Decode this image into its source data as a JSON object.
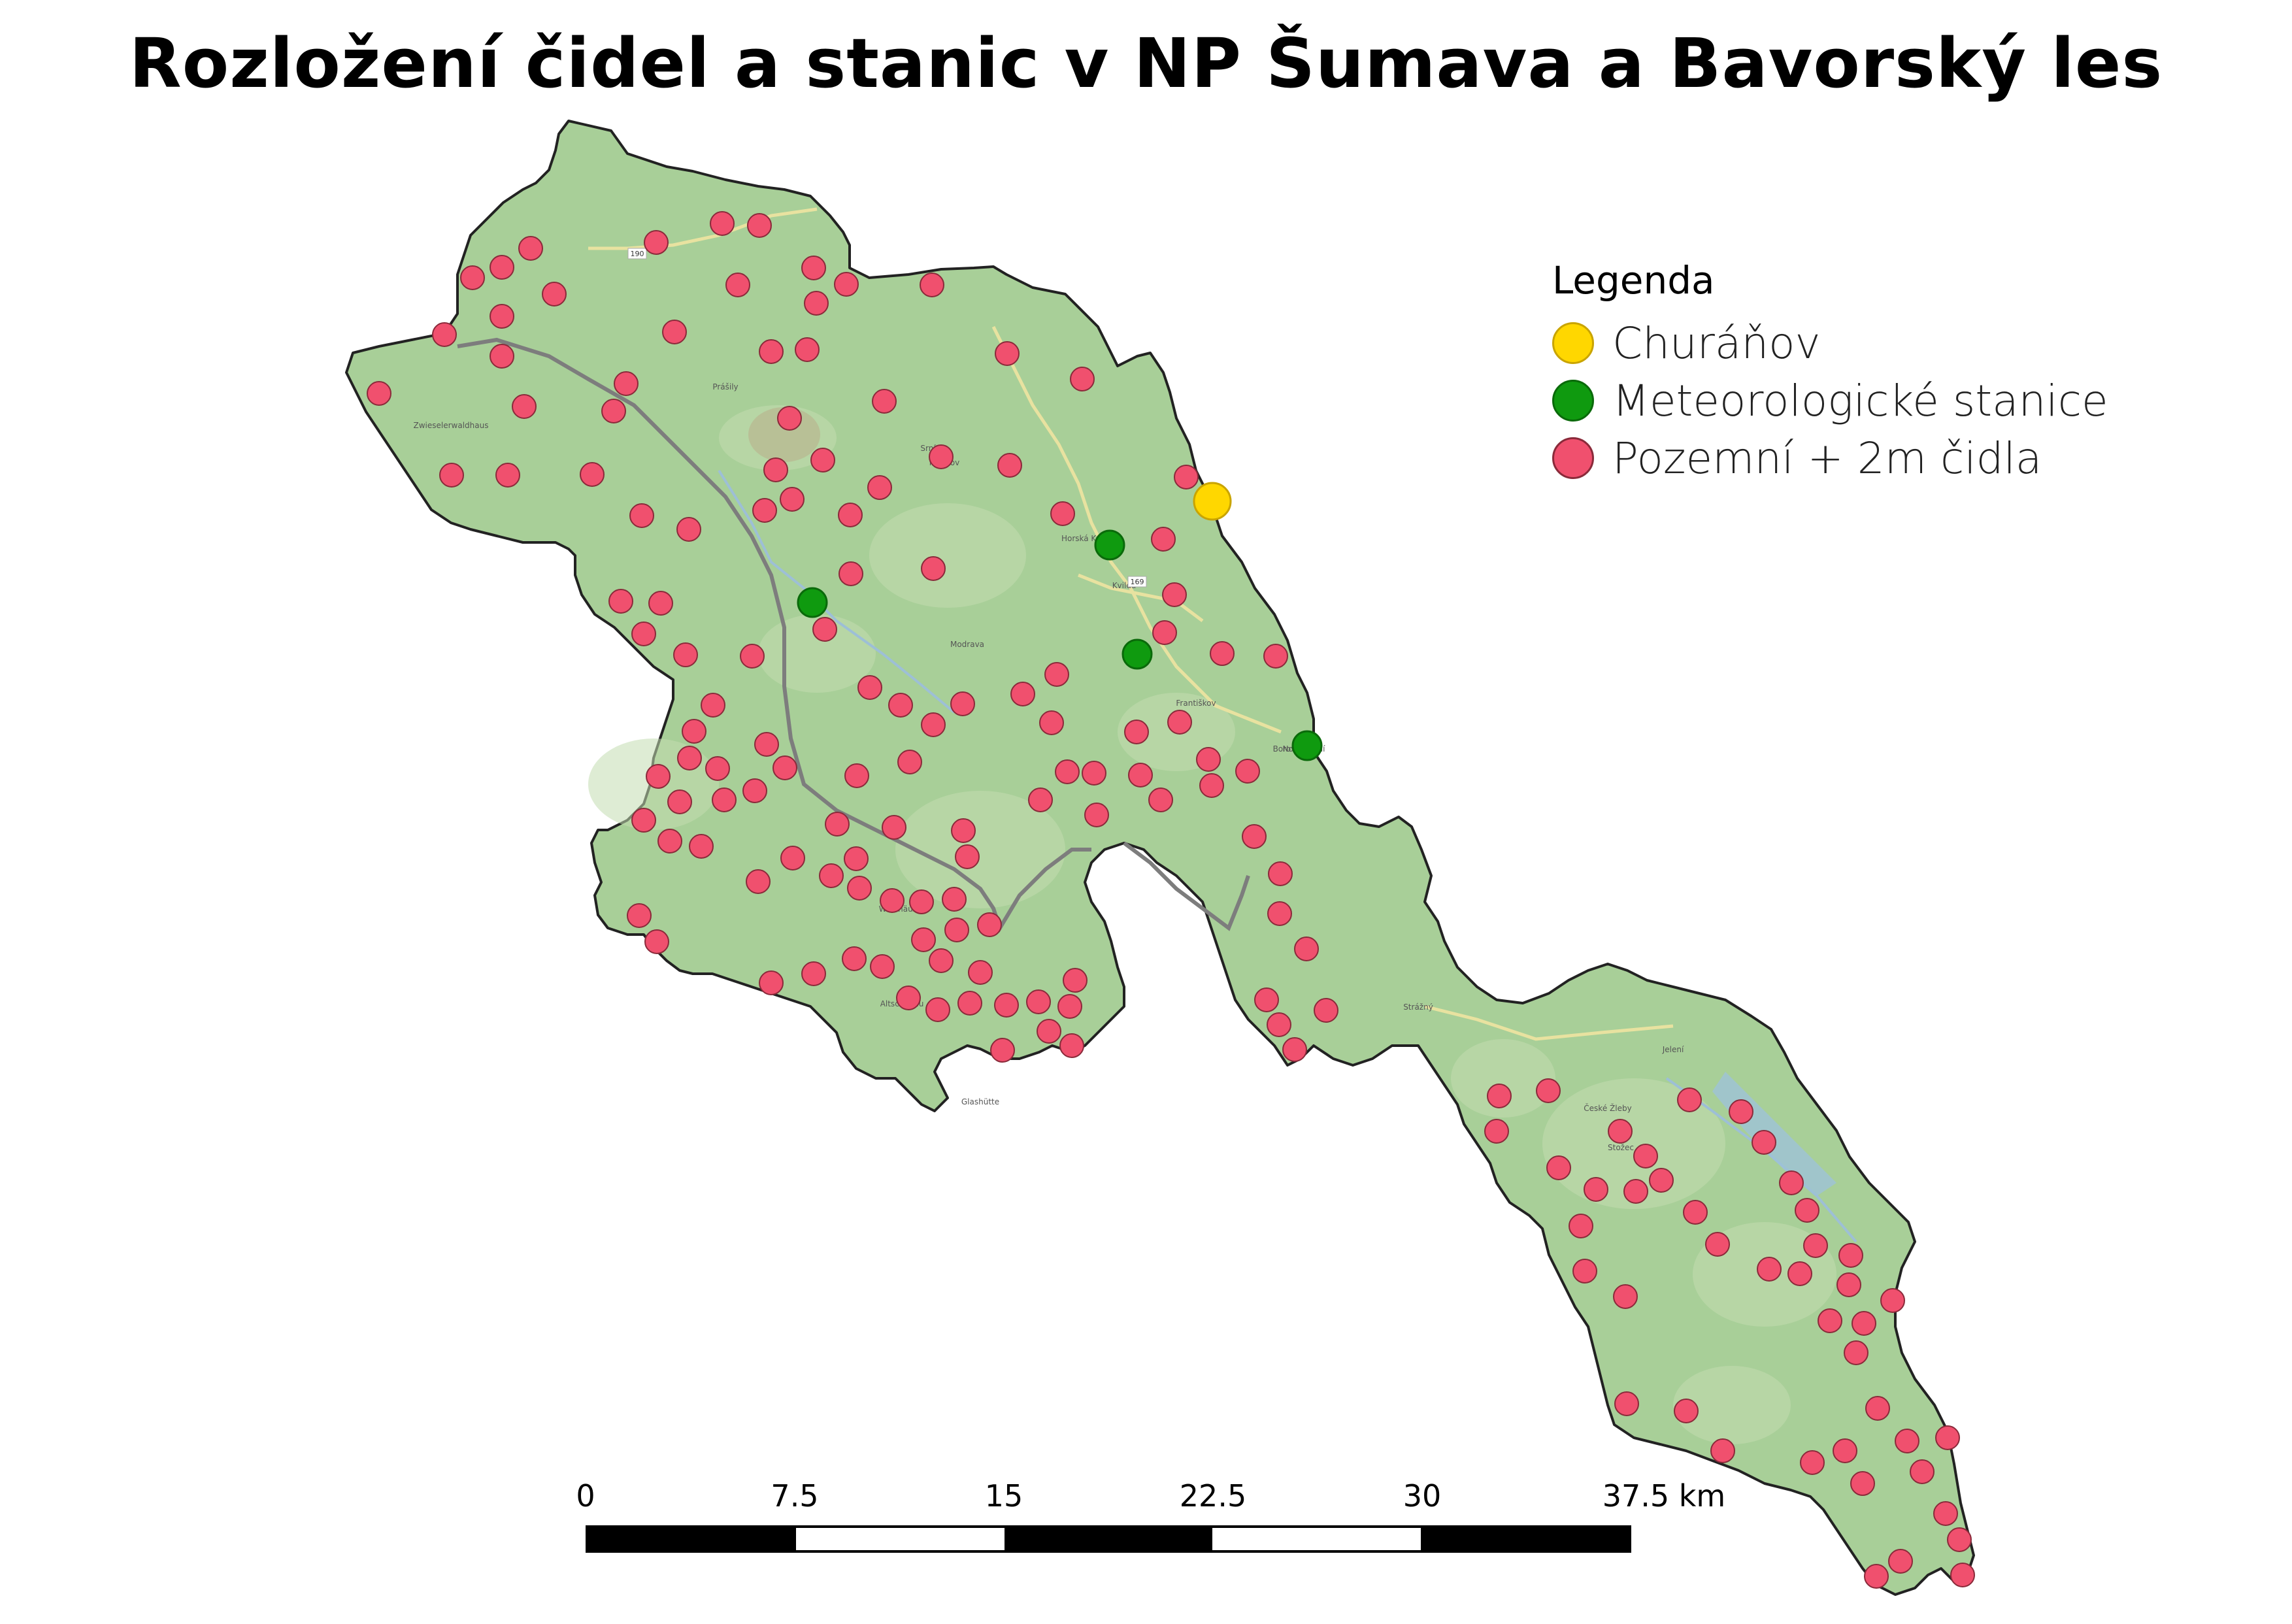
{
  "title": "Rozložení čidel a stanic v NP Šumava a Bavorský les",
  "legend": {
    "title": "Legenda",
    "items": [
      {
        "label": "Churáňov",
        "color": "#ffd700",
        "stroke": "#c9a400",
        "icon": "yellow-circle-icon"
      },
      {
        "label": "Meteorologické stanice",
        "color": "#0f9a0f",
        "stroke": "#0a6a0a",
        "icon": "green-circle-icon"
      },
      {
        "label": "Pozemní + 2m čidla",
        "color": "#f0506e",
        "stroke": "#8a2a3a",
        "icon": "red-circle-icon"
      }
    ]
  },
  "scale": {
    "labels": [
      "0",
      "7.5",
      "15",
      "22.5",
      "30",
      "37.5 km"
    ],
    "colors": [
      "#000000",
      "#ffffff",
      "#000000",
      "#ffffff",
      "#000000"
    ]
  },
  "map": {
    "land_color": "#a8cf98",
    "border_color": "#222222",
    "road_color": "#e8e2a0",
    "state_border_color": "#7d7d7d",
    "place_labels": [
      "Prášily",
      "Zwieselerwaldhaus",
      "Srní",
      "Mechov",
      "Horská Kvilda",
      "Modrava",
      "Kvilda",
      "Borová Lada",
      "Františkov",
      "Waldhäuser",
      "Altschönau",
      "Glashütte",
      "Strážný",
      "České Žleby",
      "Stožec",
      "Jelení",
      "Nové Údolí"
    ],
    "road_labels": [
      "190",
      "169"
    ]
  }
}
